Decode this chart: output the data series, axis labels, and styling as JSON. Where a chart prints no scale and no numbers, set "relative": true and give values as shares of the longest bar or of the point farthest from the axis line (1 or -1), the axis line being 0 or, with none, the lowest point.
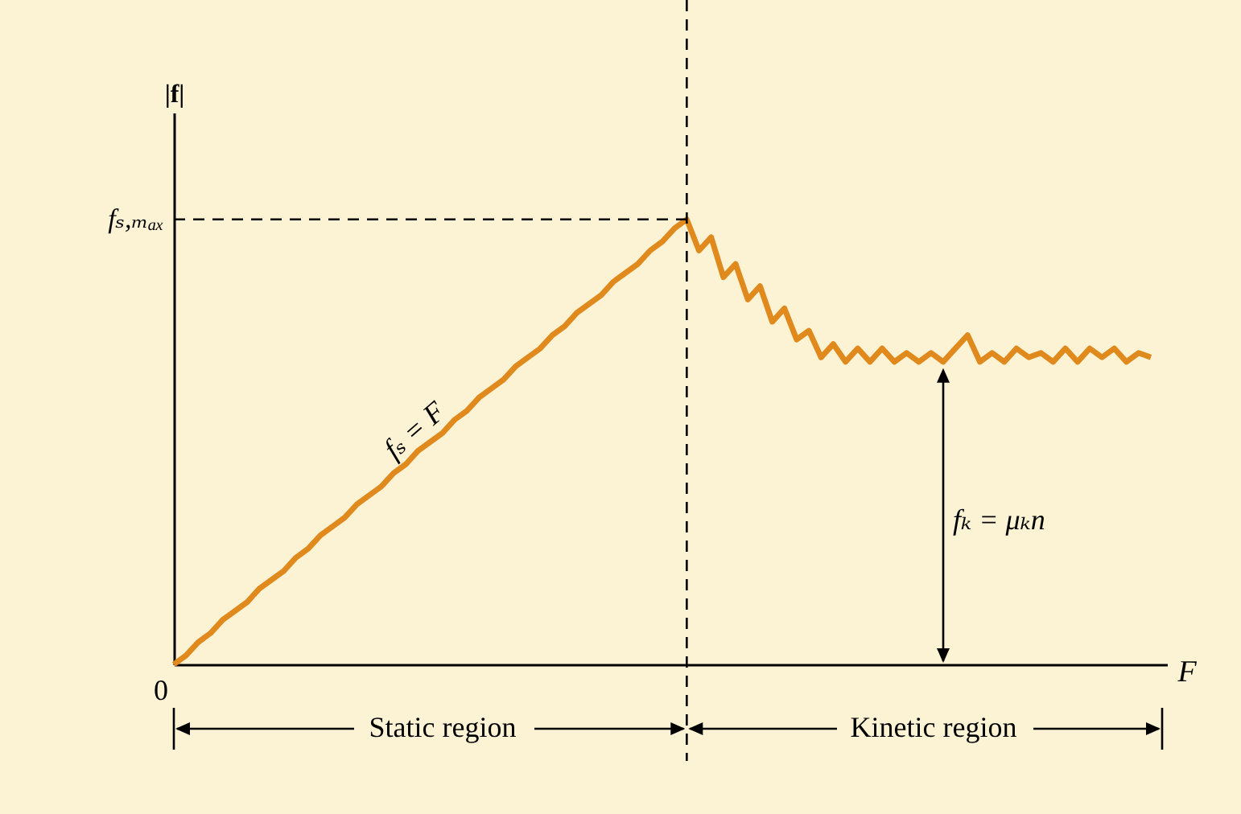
{
  "chart_data": {
    "type": "line",
    "relative": true,
    "xlabel": "F",
    "ylabel": "|f|",
    "color": "#e08a1e",
    "grid": false,
    "marker": "none",
    "line_style": "solid",
    "categories": [
      null,
      null,
      null,
      null,
      null,
      null,
      null,
      null,
      null,
      null,
      null,
      null,
      null,
      null,
      null,
      null,
      null,
      null,
      null,
      null,
      null,
      null,
      null,
      null,
      null,
      null,
      null,
      null,
      null,
      null,
      null,
      null,
      null,
      null,
      null,
      null,
      null,
      null,
      null,
      null,
      null,
      null,
      null,
      null,
      null,
      null,
      null,
      null,
      null,
      null,
      null,
      null,
      null,
      null,
      null,
      null,
      null,
      null,
      null,
      null,
      null,
      null,
      null,
      null,
      null,
      null,
      null,
      null,
      null,
      null,
      null,
      null,
      null,
      null,
      null,
      null,
      null,
      null,
      null,
      null,
      null
    ],
    "values": [
      0,
      0.02,
      0.05,
      0.07,
      0.1,
      0.12,
      0.14,
      0.17,
      0.19,
      0.21,
      0.24,
      0.26,
      0.29,
      0.31,
      0.33,
      0.36,
      0.38,
      0.4,
      0.43,
      0.45,
      0.48,
      0.5,
      0.52,
      0.55,
      0.57,
      0.6,
      0.62,
      0.64,
      0.67,
      0.69,
      0.71,
      0.74,
      0.76,
      0.79,
      0.81,
      0.83,
      0.86,
      0.88,
      0.9,
      0.93,
      0.95,
      0.98,
      1,
      0.93,
      0.96,
      0.87,
      0.9,
      0.82,
      0.85,
      0.77,
      0.8,
      0.73,
      0.75,
      0.69,
      0.72,
      0.68,
      0.71,
      0.68,
      0.71,
      0.68,
      0.7,
      0.68,
      0.7,
      0.68,
      0.71,
      0.74,
      0.68,
      0.7,
      0.68,
      0.71,
      0.69,
      0.7,
      0.68,
      0.71,
      0.68,
      0.71,
      0.69,
      0.71,
      0.68,
      0.7,
      0.69
    ],
    "ref_lines": [
      {
        "axis": "y",
        "value": 1,
        "label": "fₛ,ₘₐₓ",
        "line_style": "dashed"
      }
    ],
    "annotations": [
      "fₛ = F",
      "fₖ = μₖn",
      "Static region",
      "Kinetic region",
      "0"
    ]
  }
}
